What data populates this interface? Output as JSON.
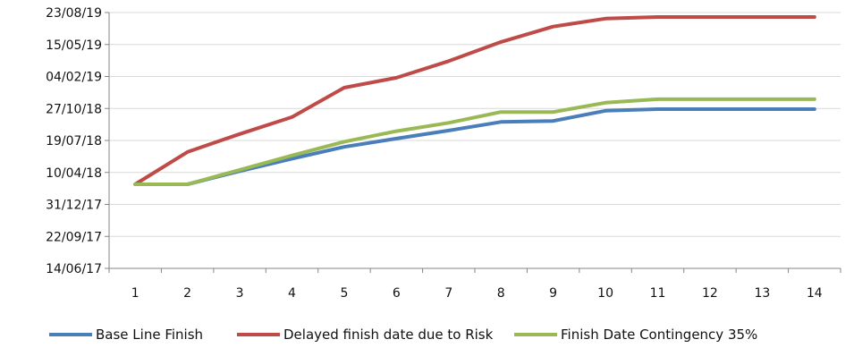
{
  "chart_data": {
    "type": "line",
    "title": "",
    "xlabel": "",
    "ylabel": "",
    "categories": [
      "1",
      "2",
      "3",
      "4",
      "5",
      "6",
      "7",
      "8",
      "9",
      "10",
      "11",
      "12",
      "13",
      "14"
    ],
    "y_ticks": [
      "14/06/17",
      "22/09/17",
      "31/12/17",
      "10/04/18",
      "19/07/18",
      "27/10/18",
      "04/02/19",
      "15/05/19",
      "23/08/19"
    ],
    "ylim": [
      "2017-06-14",
      "2019-08-23"
    ],
    "grid": true,
    "legend_position": "bottom",
    "series": [
      {
        "name": "Base Line Finish",
        "color": "#4a7ebb",
        "values": [
          "2018-03-04",
          "2018-03-04",
          "2018-04-14",
          "2018-05-23",
          "2018-06-29",
          "2018-07-25",
          "2018-08-19",
          "2018-09-15",
          "2018-09-18",
          "2018-10-20",
          "2018-10-25",
          "2018-10-25",
          "2018-10-25",
          "2018-10-25"
        ]
      },
      {
        "name": "Delayed finish date due to Risk",
        "color": "#be4b48",
        "values": [
          "2018-03-04",
          "2018-06-13",
          "2018-08-08",
          "2018-09-30",
          "2018-12-31",
          "2019-01-31",
          "2019-03-24",
          "2019-05-23",
          "2019-07-10",
          "2019-08-04",
          "2019-08-09",
          "2019-08-09",
          "2019-08-09",
          "2019-08-09"
        ]
      },
      {
        "name": "Finish Date Contingency 35%",
        "color": "#98b954",
        "values": [
          "2018-03-04",
          "2018-03-04",
          "2018-04-18",
          "2018-06-02",
          "2018-07-15",
          "2018-08-17",
          "2018-09-12",
          "2018-10-16",
          "2018-10-16",
          "2018-11-14",
          "2018-11-25",
          "2018-11-25",
          "2018-11-25",
          "2018-11-25"
        ]
      }
    ]
  }
}
